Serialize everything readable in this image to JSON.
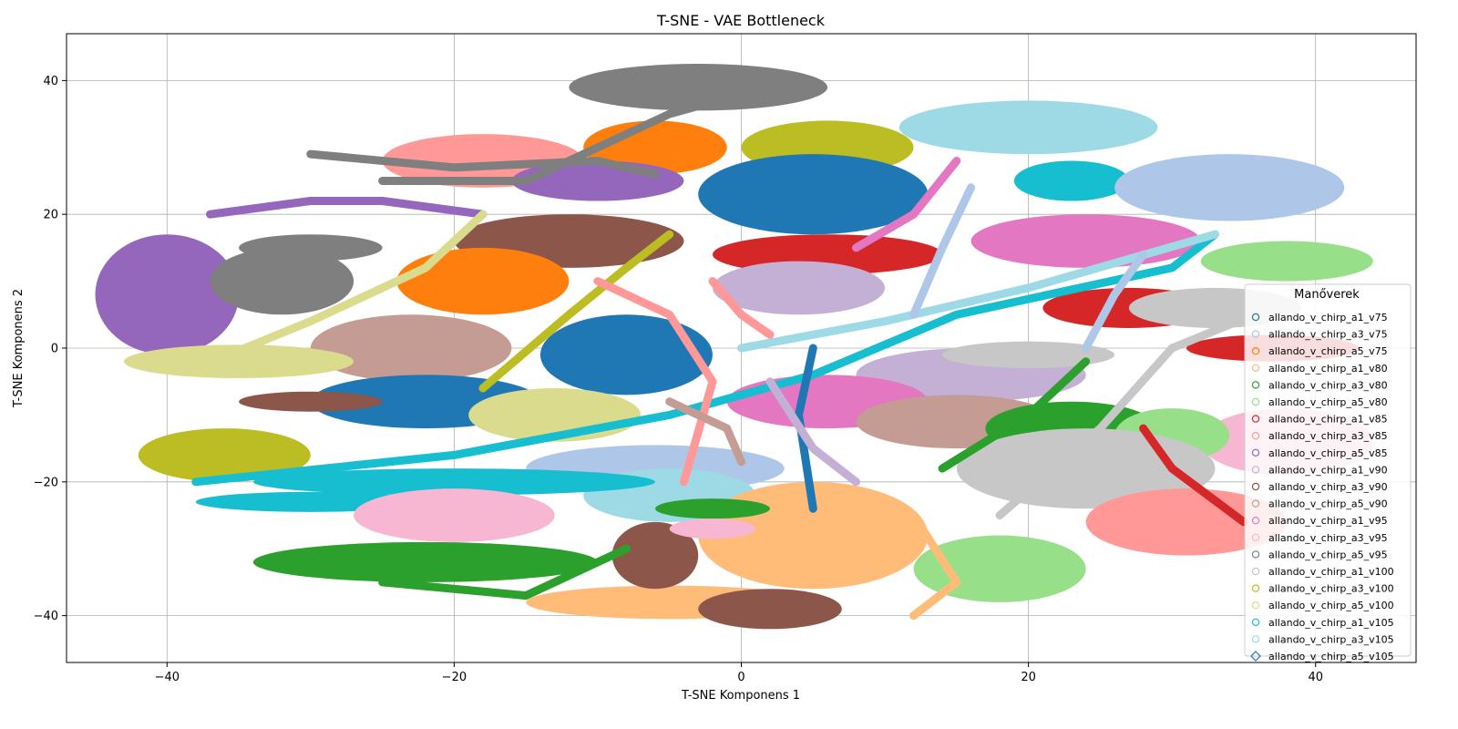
{
  "chart_data": {
    "type": "scatter",
    "title": "T-SNE - VAE Bottleneck",
    "xlabel": "T-SNE Komponens 1",
    "ylabel": "T-SNE Komponens 2",
    "xlim": [
      -47,
      47
    ],
    "ylim": [
      -47,
      47
    ],
    "xticks": [
      -40,
      -20,
      0,
      20,
      40
    ],
    "yticks": [
      -40,
      -20,
      0,
      20,
      40
    ],
    "grid": true,
    "marker": "o",
    "legend": {
      "title": "Manőverek",
      "placement": "right",
      "entries": [
        {
          "name": "allando_v_chirp_a1_v75",
          "color": "#1f77b4",
          "marker": "circle"
        },
        {
          "name": "allando_v_chirp_a3_v75",
          "color": "#aec7e8",
          "marker": "circle"
        },
        {
          "name": "allando_v_chirp_a5_v75",
          "color": "#ff7f0e",
          "marker": "circle"
        },
        {
          "name": "allando_v_chirp_a1_v80",
          "color": "#ffbb78",
          "marker": "circle"
        },
        {
          "name": "allando_v_chirp_a3_v80",
          "color": "#2ca02c",
          "marker": "circle"
        },
        {
          "name": "allando_v_chirp_a5_v80",
          "color": "#98df8a",
          "marker": "circle"
        },
        {
          "name": "allando_v_chirp_a1_v85",
          "color": "#d62728",
          "marker": "circle"
        },
        {
          "name": "allando_v_chirp_a3_v85",
          "color": "#ff9896",
          "marker": "circle"
        },
        {
          "name": "allando_v_chirp_a5_v85",
          "color": "#9467bd",
          "marker": "circle"
        },
        {
          "name": "allando_v_chirp_a1_v90",
          "color": "#c5b0d5",
          "marker": "circle"
        },
        {
          "name": "allando_v_chirp_a3_v90",
          "color": "#8c564b",
          "marker": "circle"
        },
        {
          "name": "allando_v_chirp_a5_v90",
          "color": "#c49c94",
          "marker": "circle"
        },
        {
          "name": "allando_v_chirp_a1_v95",
          "color": "#e377c2",
          "marker": "circle"
        },
        {
          "name": "allando_v_chirp_a3_v95",
          "color": "#f7b6d2",
          "marker": "circle"
        },
        {
          "name": "allando_v_chirp_a5_v95",
          "color": "#7f7f7f",
          "marker": "circle"
        },
        {
          "name": "allando_v_chirp_a1_v100",
          "color": "#c7c7c7",
          "marker": "circle"
        },
        {
          "name": "allando_v_chirp_a3_v100",
          "color": "#bcbd22",
          "marker": "circle"
        },
        {
          "name": "allando_v_chirp_a5_v100",
          "color": "#dbdb8d",
          "marker": "circle"
        },
        {
          "name": "allando_v_chirp_a1_v105",
          "color": "#17becf",
          "marker": "circle"
        },
        {
          "name": "allando_v_chirp_a3_v105",
          "color": "#9edae5",
          "marker": "circle"
        },
        {
          "name": "allando_v_chirp_a5_v105",
          "color": "#1f77b4",
          "marker": "diamond"
        }
      ]
    },
    "clusters": [
      {
        "series": 14,
        "shape": "ellipse",
        "cx": -3,
        "cy": 39,
        "rx": 9,
        "ry": 3.5
      },
      {
        "series": 7,
        "shape": "ellipse",
        "cx": -18,
        "cy": 28,
        "rx": 7,
        "ry": 4
      },
      {
        "series": 2,
        "shape": "ellipse",
        "cx": -6,
        "cy": 30,
        "rx": 5,
        "ry": 4
      },
      {
        "series": 16,
        "shape": "ellipse",
        "cx": 6,
        "cy": 30,
        "rx": 6,
        "ry": 4
      },
      {
        "series": 0,
        "shape": "ellipse",
        "cx": 5,
        "cy": 23,
        "rx": 8,
        "ry": 6
      },
      {
        "series": 19,
        "shape": "ellipse",
        "cx": 20,
        "cy": 33,
        "rx": 9,
        "ry": 4
      },
      {
        "series": 18,
        "shape": "ellipse",
        "cx": 23,
        "cy": 25,
        "rx": 4,
        "ry": 3
      },
      {
        "series": 1,
        "shape": "ellipse",
        "cx": 34,
        "cy": 24,
        "rx": 8,
        "ry": 5
      },
      {
        "series": 8,
        "shape": "ellipse",
        "cx": -10,
        "cy": 25,
        "rx": 6,
        "ry": 3
      },
      {
        "series": 8,
        "shape": "ellipse",
        "cx": -40,
        "cy": 8,
        "rx": 5,
        "ry": 9
      },
      {
        "series": 14,
        "shape": "ellipse",
        "cx": -32,
        "cy": 10,
        "rx": 5,
        "ry": 5
      },
      {
        "series": 10,
        "shape": "ellipse",
        "cx": -12,
        "cy": 16,
        "rx": 8,
        "ry": 4
      },
      {
        "series": 2,
        "shape": "ellipse",
        "cx": -18,
        "cy": 10,
        "rx": 6,
        "ry": 5
      },
      {
        "series": 6,
        "shape": "ellipse",
        "cx": 6,
        "cy": 14,
        "rx": 8,
        "ry": 3
      },
      {
        "series": 9,
        "shape": "ellipse",
        "cx": 4,
        "cy": 9,
        "rx": 6,
        "ry": 4
      },
      {
        "series": 12,
        "shape": "ellipse",
        "cx": 24,
        "cy": 16,
        "rx": 8,
        "ry": 4
      },
      {
        "series": 5,
        "shape": "ellipse",
        "cx": 38,
        "cy": 13,
        "rx": 6,
        "ry": 3
      },
      {
        "series": 6,
        "shape": "ellipse",
        "cx": 27,
        "cy": 6,
        "rx": 6,
        "ry": 3
      },
      {
        "series": 15,
        "shape": "ellipse",
        "cx": 33,
        "cy": 6,
        "rx": 6,
        "ry": 3
      },
      {
        "series": 6,
        "shape": "ellipse",
        "cx": 37,
        "cy": 0,
        "rx": 6,
        "ry": 2
      },
      {
        "series": 11,
        "shape": "ellipse",
        "cx": -23,
        "cy": 0,
        "rx": 7,
        "ry": 5
      },
      {
        "series": 0,
        "shape": "ellipse",
        "cx": -8,
        "cy": -1,
        "rx": 6,
        "ry": 6
      },
      {
        "series": 0,
        "shape": "ellipse",
        "cx": -22,
        "cy": -8,
        "rx": 8,
        "ry": 4
      },
      {
        "series": 17,
        "shape": "ellipse",
        "cx": -35,
        "cy": -2,
        "rx": 8,
        "ry": 2.5
      },
      {
        "series": 16,
        "shape": "ellipse",
        "cx": -36,
        "cy": -16,
        "rx": 6,
        "ry": 4
      },
      {
        "series": 17,
        "shape": "ellipse",
        "cx": -13,
        "cy": -10,
        "rx": 6,
        "ry": 4
      },
      {
        "series": 9,
        "shape": "ellipse",
        "cx": 16,
        "cy": -4,
        "rx": 8,
        "ry": 4
      },
      {
        "series": 12,
        "shape": "ellipse",
        "cx": 6,
        "cy": -8,
        "rx": 7,
        "ry": 4
      },
      {
        "series": 11,
        "shape": "ellipse",
        "cx": 15,
        "cy": -11,
        "rx": 7,
        "ry": 4
      },
      {
        "series": 15,
        "shape": "ellipse",
        "cx": 20,
        "cy": -1,
        "rx": 6,
        "ry": 2
      },
      {
        "series": 4,
        "shape": "ellipse",
        "cx": 23,
        "cy": -12,
        "rx": 6,
        "ry": 4
      },
      {
        "series": 13,
        "shape": "ellipse",
        "cx": 38,
        "cy": -14,
        "rx": 6,
        "ry": 5
      },
      {
        "series": 5,
        "shape": "ellipse",
        "cx": 30,
        "cy": -13,
        "rx": 4,
        "ry": 4
      },
      {
        "series": 15,
        "shape": "ellipse",
        "cx": 24,
        "cy": -18,
        "rx": 9,
        "ry": 6
      },
      {
        "series": 7,
        "shape": "ellipse",
        "cx": 31,
        "cy": -26,
        "rx": 7,
        "ry": 5
      },
      {
        "series": 5,
        "shape": "ellipse",
        "cx": 18,
        "cy": -33,
        "rx": 6,
        "ry": 5
      },
      {
        "series": 1,
        "shape": "ellipse",
        "cx": -6,
        "cy": -18,
        "rx": 9,
        "ry": 3.5
      },
      {
        "series": 19,
        "shape": "ellipse",
        "cx": -5,
        "cy": -22,
        "rx": 6,
        "ry": 4
      },
      {
        "series": 18,
        "shape": "ellipse",
        "cx": -20,
        "cy": -20,
        "rx": 14,
        "ry": 2
      },
      {
        "series": 18,
        "shape": "ellipse",
        "cx": -30,
        "cy": -23,
        "rx": 8,
        "ry": 1.5
      },
      {
        "series": 13,
        "shape": "ellipse",
        "cx": -20,
        "cy": -25,
        "rx": 7,
        "ry": 4
      },
      {
        "series": 4,
        "shape": "ellipse",
        "cx": -22,
        "cy": -32,
        "rx": 12,
        "ry": 3
      },
      {
        "series": 3,
        "shape": "ellipse",
        "cx": 5,
        "cy": -28,
        "rx": 8,
        "ry": 8
      },
      {
        "series": 3,
        "shape": "ellipse",
        "cx": -5,
        "cy": -38,
        "rx": 10,
        "ry": 2.5
      },
      {
        "series": 10,
        "shape": "ellipse",
        "cx": -6,
        "cy": -31,
        "rx": 3,
        "ry": 5
      },
      {
        "series": 10,
        "shape": "ellipse",
        "cx": 2,
        "cy": -39,
        "rx": 5,
        "ry": 3
      },
      {
        "series": 4,
        "shape": "ellipse",
        "cx": -2,
        "cy": -24,
        "rx": 4,
        "ry": 1.5
      },
      {
        "series": 13,
        "shape": "ellipse",
        "cx": -2,
        "cy": -27,
        "rx": 3,
        "ry": 1.5
      },
      {
        "series": 10,
        "shape": "ellipse",
        "cx": -30,
        "cy": -8,
        "rx": 5,
        "ry": 1.5
      },
      {
        "series": 14,
        "shape": "ellipse",
        "cx": -30,
        "cy": 15,
        "rx": 5,
        "ry": 2
      }
    ],
    "strands": [
      {
        "series": 14,
        "points": [
          [
            -25,
            25
          ],
          [
            -15,
            25
          ],
          [
            -5,
            35
          ],
          [
            0,
            38
          ]
        ]
      },
      {
        "series": 14,
        "points": [
          [
            -30,
            29
          ],
          [
            -20,
            27
          ],
          [
            -10,
            28
          ],
          [
            -6,
            26
          ]
        ]
      },
      {
        "series": 8,
        "points": [
          [
            -37,
            20
          ],
          [
            -30,
            22
          ],
          [
            -25,
            22
          ],
          [
            -18,
            20
          ]
        ]
      },
      {
        "series": 17,
        "points": [
          [
            -38,
            -3
          ],
          [
            -30,
            4
          ],
          [
            -22,
            12
          ],
          [
            -18,
            20
          ]
        ]
      },
      {
        "series": 16,
        "points": [
          [
            -18,
            -6
          ],
          [
            -12,
            5
          ],
          [
            -8,
            12
          ],
          [
            -5,
            17
          ]
        ]
      },
      {
        "series": 18,
        "points": [
          [
            -38,
            -20
          ],
          [
            -20,
            -16
          ],
          [
            -5,
            -10
          ],
          [
            5,
            -4
          ],
          [
            15,
            5
          ],
          [
            30,
            12
          ],
          [
            33,
            17
          ]
        ]
      },
      {
        "series": 19,
        "points": [
          [
            0,
            0
          ],
          [
            10,
            4
          ],
          [
            20,
            9
          ],
          [
            33,
            17
          ]
        ]
      },
      {
        "series": 15,
        "points": [
          [
            18,
            -25
          ],
          [
            25,
            -12
          ],
          [
            30,
            0
          ],
          [
            38,
            7
          ]
        ]
      },
      {
        "series": 6,
        "points": [
          [
            28,
            -12
          ],
          [
            30,
            -18
          ],
          [
            35,
            -26
          ]
        ]
      },
      {
        "series": 4,
        "points": [
          [
            14,
            -18
          ],
          [
            20,
            -10
          ],
          [
            24,
            -2
          ]
        ]
      },
      {
        "series": 7,
        "points": [
          [
            -10,
            10
          ],
          [
            -5,
            5
          ],
          [
            -2,
            -5
          ],
          [
            -4,
            -20
          ]
        ]
      },
      {
        "series": 11,
        "points": [
          [
            -5,
            -8
          ],
          [
            -1,
            -12
          ],
          [
            0,
            -17
          ]
        ]
      },
      {
        "series": 0,
        "points": [
          [
            5,
            0
          ],
          [
            4,
            -10
          ],
          [
            5,
            -24
          ]
        ]
      },
      {
        "series": 12,
        "points": [
          [
            8,
            15
          ],
          [
            12,
            20
          ],
          [
            15,
            28
          ]
        ]
      },
      {
        "series": 1,
        "points": [
          [
            12,
            5
          ],
          [
            14,
            15
          ],
          [
            16,
            24
          ]
        ]
      },
      {
        "series": 1,
        "points": [
          [
            24,
            0
          ],
          [
            26,
            8
          ],
          [
            28,
            14
          ]
        ]
      },
      {
        "series": 3,
        "points": [
          [
            12,
            -25
          ],
          [
            15,
            -35
          ],
          [
            12,
            -40
          ]
        ]
      },
      {
        "series": 4,
        "points": [
          [
            -25,
            -35
          ],
          [
            -15,
            -37
          ],
          [
            -8,
            -30
          ]
        ]
      },
      {
        "series": 7,
        "points": [
          [
            -2,
            10
          ],
          [
            0,
            5
          ],
          [
            2,
            2
          ]
        ]
      },
      {
        "series": 9,
        "points": [
          [
            2,
            -5
          ],
          [
            5,
            -15
          ],
          [
            8,
            -20
          ]
        ]
      }
    ]
  }
}
